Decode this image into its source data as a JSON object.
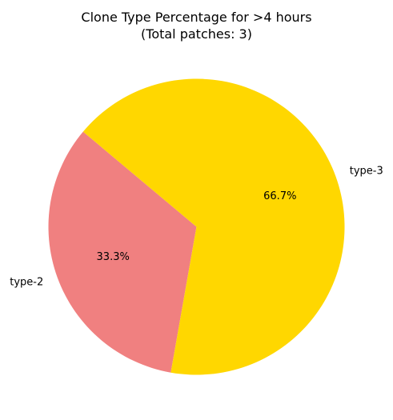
{
  "chart_data": {
    "type": "pie",
    "title_lines": [
      "Clone Type Percentage for >4 hours",
      "(Total patches: 3)"
    ],
    "slices": [
      {
        "label": "type-2",
        "value": 1,
        "pct_label": "33.3%",
        "color": "#F08080"
      },
      {
        "label": "type-3",
        "value": 2,
        "pct_label": "66.7%",
        "color": "#FFD700"
      }
    ],
    "start_angle_deg": 140,
    "counterclockwise": true
  }
}
